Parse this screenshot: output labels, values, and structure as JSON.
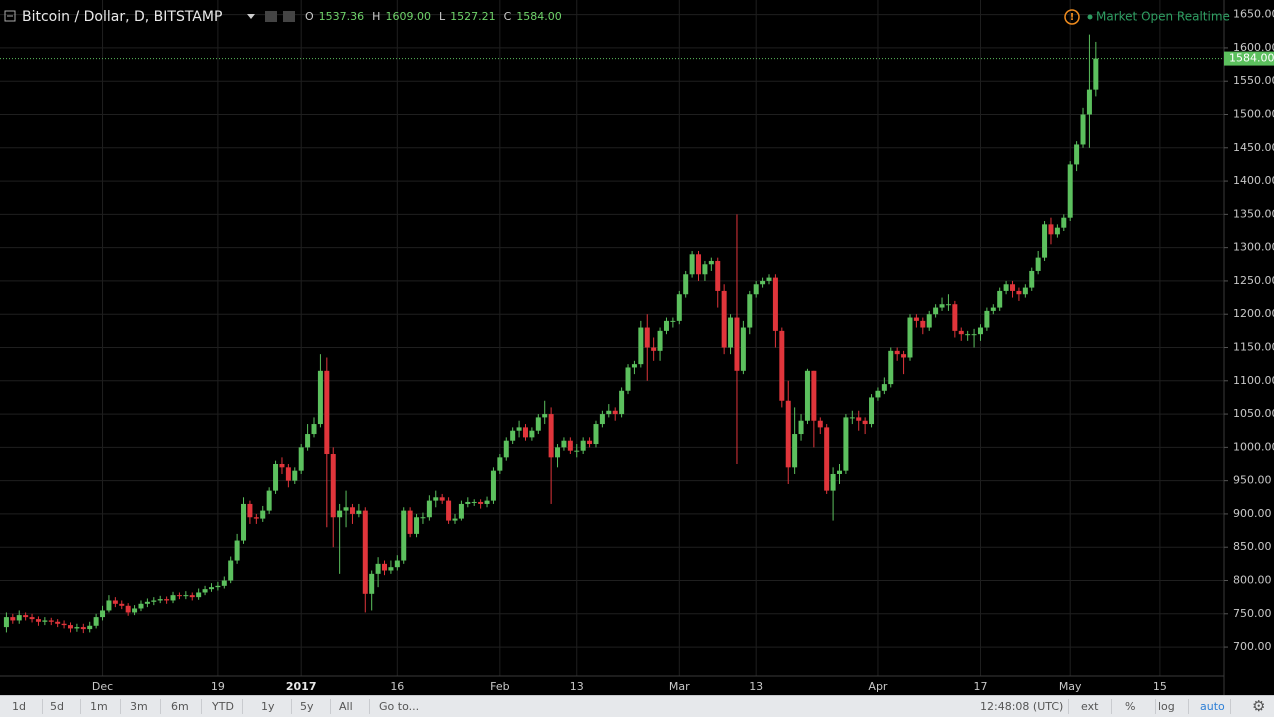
{
  "chart_data": {
    "type": "candlestick",
    "symbol": "Bitcoin / Dollar, D, BITSTAMP",
    "status": "Market Open Realtime",
    "ohlc_header": [
      {
        "key": "O",
        "text": "1537.36"
      },
      {
        "key": "H",
        "text": "1609.00"
      },
      {
        "key": "L",
        "text": "1527.21"
      },
      {
        "key": "C",
        "text": "1584.00"
      }
    ],
    "up_color": "#5cc05e",
    "down_color": "#e0353b",
    "grid": true,
    "last_price": {
      "value": 1584,
      "label": "1584.00"
    },
    "xlim": [
      "2016-11-15",
      "2017-05-25"
    ],
    "xticks": [
      {
        "value": "2016-12-01",
        "label": "Dec"
      },
      {
        "value": "2016-12-19",
        "label": "19"
      },
      {
        "value": "2017-01-01",
        "label": "2017"
      },
      {
        "value": "2017-01-16",
        "label": "16"
      },
      {
        "value": "2017-02-01",
        "label": "Feb"
      },
      {
        "value": "2017-02-13",
        "label": "13"
      },
      {
        "value": "2017-03-01",
        "label": "Mar"
      },
      {
        "value": "2017-03-13",
        "label": "13"
      },
      {
        "value": "2017-04-01",
        "label": "Apr"
      },
      {
        "value": "2017-04-17",
        "label": "17"
      },
      {
        "value": "2017-05-01",
        "label": "May"
      },
      {
        "value": "2017-05-15",
        "label": "15"
      }
    ],
    "ylim": [
      628,
      1672
    ],
    "yticks": [
      {
        "value": 700,
        "label": "700.00"
      },
      {
        "value": 750,
        "label": "750.00"
      },
      {
        "value": 800,
        "label": "800.00"
      },
      {
        "value": 850,
        "label": "850.00"
      },
      {
        "value": 900,
        "label": "900.00"
      },
      {
        "value": 950,
        "label": "950.00"
      },
      {
        "value": 1000,
        "label": "1000.00"
      },
      {
        "value": 1050,
        "label": "1050.00"
      },
      {
        "value": 1100,
        "label": "1100.00"
      },
      {
        "value": 1150,
        "label": "1150.00"
      },
      {
        "value": 1200,
        "label": "1200.00"
      },
      {
        "value": 1250,
        "label": "1250.00"
      },
      {
        "value": 1300,
        "label": "1300.00"
      },
      {
        "value": 1350,
        "label": "1350.00"
      },
      {
        "value": 1400,
        "label": "1400.00"
      },
      {
        "value": 1450,
        "label": "1450.00"
      },
      {
        "value": 1500,
        "label": "1500.00"
      },
      {
        "value": 1550,
        "label": "1550.00"
      },
      {
        "value": 1600,
        "label": "1600.00"
      },
      {
        "value": 1650,
        "label": "1650.00"
      }
    ],
    "x": [
      "2016-11-16",
      "2016-11-17",
      "2016-11-18",
      "2016-11-19",
      "2016-11-20",
      "2016-11-21",
      "2016-11-22",
      "2016-11-23",
      "2016-11-24",
      "2016-11-25",
      "2016-11-26",
      "2016-11-27",
      "2016-11-28",
      "2016-11-29",
      "2016-11-30",
      "2016-12-01",
      "2016-12-02",
      "2016-12-03",
      "2016-12-04",
      "2016-12-05",
      "2016-12-06",
      "2016-12-07",
      "2016-12-08",
      "2016-12-09",
      "2016-12-10",
      "2016-12-11",
      "2016-12-12",
      "2016-12-13",
      "2016-12-14",
      "2016-12-15",
      "2016-12-16",
      "2016-12-17",
      "2016-12-18",
      "2016-12-19",
      "2016-12-20",
      "2016-12-21",
      "2016-12-22",
      "2016-12-23",
      "2016-12-24",
      "2016-12-25",
      "2016-12-26",
      "2016-12-27",
      "2016-12-28",
      "2016-12-29",
      "2016-12-30",
      "2016-12-31",
      "2017-01-01",
      "2017-01-02",
      "2017-01-03",
      "2017-01-04",
      "2017-01-05",
      "2017-01-06",
      "2017-01-07",
      "2017-01-08",
      "2017-01-09",
      "2017-01-10",
      "2017-01-11",
      "2017-01-12",
      "2017-01-13",
      "2017-01-14",
      "2017-01-15",
      "2017-01-16",
      "2017-01-17",
      "2017-01-18",
      "2017-01-19",
      "2017-01-20",
      "2017-01-21",
      "2017-01-22",
      "2017-01-23",
      "2017-01-24",
      "2017-01-25",
      "2017-01-26",
      "2017-01-27",
      "2017-01-28",
      "2017-01-29",
      "2017-01-30",
      "2017-01-31",
      "2017-02-01",
      "2017-02-02",
      "2017-02-03",
      "2017-02-04",
      "2017-02-05",
      "2017-02-06",
      "2017-02-07",
      "2017-02-08",
      "2017-02-09",
      "2017-02-10",
      "2017-02-11",
      "2017-02-12",
      "2017-02-13",
      "2017-02-14",
      "2017-02-15",
      "2017-02-16",
      "2017-02-17",
      "2017-02-18",
      "2017-02-19",
      "2017-02-20",
      "2017-02-21",
      "2017-02-22",
      "2017-02-23",
      "2017-02-24",
      "2017-02-25",
      "2017-02-26",
      "2017-02-27",
      "2017-02-28",
      "2017-03-01",
      "2017-03-02",
      "2017-03-03",
      "2017-03-04",
      "2017-03-05",
      "2017-03-06",
      "2017-03-07",
      "2017-03-08",
      "2017-03-09",
      "2017-03-10",
      "2017-03-11",
      "2017-03-12",
      "2017-03-13",
      "2017-03-14",
      "2017-03-15",
      "2017-03-16",
      "2017-03-17",
      "2017-03-18",
      "2017-03-19",
      "2017-03-20",
      "2017-03-21",
      "2017-03-22",
      "2017-03-23",
      "2017-03-24",
      "2017-03-25",
      "2017-03-26",
      "2017-03-27",
      "2017-03-28",
      "2017-03-29",
      "2017-03-30",
      "2017-03-31",
      "2017-04-01",
      "2017-04-02",
      "2017-04-03",
      "2017-04-04",
      "2017-04-05",
      "2017-04-06",
      "2017-04-07",
      "2017-04-08",
      "2017-04-09",
      "2017-04-10",
      "2017-04-11",
      "2017-04-12",
      "2017-04-13",
      "2017-04-14",
      "2017-04-15",
      "2017-04-16",
      "2017-04-17",
      "2017-04-18",
      "2017-04-19",
      "2017-04-20",
      "2017-04-21",
      "2017-04-22",
      "2017-04-23",
      "2017-04-24",
      "2017-04-25",
      "2017-04-26",
      "2017-04-27",
      "2017-04-28",
      "2017-04-29",
      "2017-04-30",
      "2017-05-01",
      "2017-05-02",
      "2017-05-03",
      "2017-05-04",
      "2017-05-05"
    ],
    "open": [
      730,
      745,
      740,
      748,
      745,
      742,
      738,
      740,
      738,
      735,
      733,
      728,
      730,
      727,
      732,
      745,
      755,
      770,
      765,
      762,
      752,
      758,
      765,
      768,
      770,
      772,
      770,
      778,
      777,
      778,
      775,
      782,
      787,
      790,
      792,
      800,
      830,
      860,
      915,
      895,
      893,
      905,
      935,
      975,
      970,
      950,
      965,
      1000,
      1020,
      1035,
      1115,
      990,
      895,
      905,
      910,
      900,
      905,
      780,
      810,
      825,
      815,
      820,
      830,
      905,
      870,
      895,
      895,
      920,
      925,
      920,
      890,
      893,
      915,
      918,
      918,
      915,
      920,
      965,
      985,
      1010,
      1025,
      1030,
      1015,
      1025,
      1045,
      1050,
      985,
      1000,
      1010,
      995,
      995,
      1010,
      1005,
      1035,
      1050,
      1055,
      1050,
      1085,
      1120,
      1125,
      1180,
      1150,
      1145,
      1175,
      1190,
      1190,
      1230,
      1260,
      1290,
      1260,
      1275,
      1280,
      1235,
      1150,
      1195,
      1115,
      1180,
      1230,
      1245,
      1250,
      1255,
      1175,
      1070,
      970,
      1020,
      1040,
      1115,
      1040,
      1030,
      935,
      960,
      965,
      1045,
      1045,
      1040,
      1035,
      1075,
      1085,
      1095,
      1145,
      1140,
      1135,
      1195,
      1190,
      1180,
      1200,
      1210,
      1215,
      1215,
      1175,
      1170,
      1170,
      1170,
      1180,
      1205,
      1210,
      1235,
      1245,
      1235,
      1230,
      1240,
      1265,
      1285,
      1335,
      1320,
      1330,
      1345,
      1425,
      1455,
      1500,
      1537.36
    ],
    "high": [
      752,
      750,
      755,
      752,
      750,
      746,
      745,
      744,
      742,
      740,
      737,
      735,
      735,
      738,
      750,
      762,
      778,
      775,
      770,
      766,
      763,
      770,
      773,
      775,
      777,
      776,
      783,
      782,
      784,
      782,
      788,
      792,
      796,
      798,
      806,
      836,
      870,
      925,
      920,
      900,
      912,
      940,
      980,
      985,
      975,
      970,
      1005,
      1035,
      1045,
      1140,
      1135,
      1000,
      915,
      935,
      915,
      915,
      910,
      815,
      835,
      830,
      830,
      838,
      910,
      910,
      900,
      902,
      928,
      935,
      930,
      925,
      900,
      920,
      925,
      922,
      922,
      926,
      970,
      990,
      1015,
      1030,
      1040,
      1035,
      1030,
      1050,
      1070,
      1060,
      1005,
      1015,
      1015,
      1005,
      1015,
      1015,
      1040,
      1055,
      1065,
      1060,
      1090,
      1125,
      1130,
      1190,
      1200,
      1165,
      1180,
      1195,
      1195,
      1235,
      1265,
      1295,
      1295,
      1280,
      1285,
      1285,
      1245,
      1200,
      1350,
      1190,
      1235,
      1250,
      1255,
      1260,
      1260,
      1180,
      1100,
      1060,
      1050,
      1118,
      1115,
      1045,
      1035,
      970,
      975,
      1050,
      1055,
      1055,
      1045,
      1080,
      1090,
      1105,
      1150,
      1150,
      1145,
      1200,
      1200,
      1195,
      1205,
      1215,
      1225,
      1230,
      1220,
      1180,
      1175,
      1178,
      1185,
      1210,
      1215,
      1240,
      1250,
      1250,
      1240,
      1245,
      1270,
      1295,
      1340,
      1345,
      1335,
      1350,
      1430,
      1460,
      1510,
      1620,
      1609
    ],
    "low": [
      722,
      735,
      735,
      740,
      737,
      732,
      733,
      733,
      730,
      728,
      722,
      723,
      721,
      722,
      728,
      740,
      752,
      760,
      757,
      747,
      748,
      754,
      760,
      763,
      766,
      765,
      766,
      772,
      772,
      770,
      771,
      778,
      783,
      785,
      788,
      796,
      825,
      855,
      885,
      885,
      888,
      900,
      930,
      960,
      940,
      945,
      960,
      995,
      1015,
      1030,
      880,
      850,
      810,
      880,
      885,
      895,
      752,
      755,
      790,
      808,
      810,
      815,
      825,
      865,
      865,
      885,
      890,
      910,
      915,
      885,
      885,
      890,
      910,
      912,
      908,
      910,
      915,
      960,
      980,
      1005,
      1015,
      1010,
      1010,
      1020,
      1035,
      915,
      970,
      995,
      990,
      985,
      990,
      1000,
      1000,
      1030,
      1045,
      1040,
      1045,
      1080,
      1110,
      1120,
      1100,
      1130,
      1130,
      1170,
      1180,
      1185,
      1225,
      1255,
      1250,
      1250,
      1265,
      1210,
      1140,
      1140,
      975,
      1110,
      1170,
      1225,
      1240,
      1245,
      1150,
      1060,
      945,
      960,
      1010,
      1035,
      1000,
      1020,
      930,
      890,
      945,
      960,
      1035,
      1025,
      1020,
      1030,
      1070,
      1080,
      1090,
      1130,
      1110,
      1130,
      1180,
      1170,
      1175,
      1195,
      1205,
      1205,
      1165,
      1160,
      1160,
      1150,
      1160,
      1175,
      1200,
      1205,
      1230,
      1225,
      1220,
      1225,
      1235,
      1260,
      1280,
      1305,
      1315,
      1325,
      1340,
      1415,
      1450,
      1450,
      1527.21
    ],
    "close": [
      745,
      740,
      748,
      745,
      742,
      738,
      740,
      738,
      735,
      733,
      728,
      730,
      727,
      732,
      745,
      755,
      770,
      765,
      762,
      752,
      758,
      765,
      768,
      770,
      772,
      770,
      778,
      777,
      778,
      775,
      782,
      787,
      790,
      792,
      800,
      830,
      860,
      915,
      895,
      893,
      905,
      935,
      975,
      970,
      950,
      965,
      1000,
      1020,
      1035,
      1115,
      990,
      895,
      905,
      910,
      900,
      905,
      780,
      810,
      825,
      815,
      820,
      830,
      905,
      870,
      895,
      895,
      920,
      925,
      920,
      890,
      893,
      915,
      918,
      918,
      915,
      920,
      965,
      985,
      1010,
      1025,
      1030,
      1015,
      1025,
      1045,
      1050,
      985,
      1000,
      1010,
      995,
      995,
      1010,
      1005,
      1035,
      1050,
      1055,
      1050,
      1085,
      1120,
      1125,
      1180,
      1150,
      1145,
      1175,
      1190,
      1190,
      1230,
      1260,
      1290,
      1260,
      1275,
      1280,
      1235,
      1150,
      1195,
      1115,
      1180,
      1230,
      1245,
      1250,
      1255,
      1175,
      1070,
      970,
      1020,
      1040,
      1115,
      1040,
      1030,
      935,
      960,
      965,
      1045,
      1045,
      1040,
      1035,
      1075,
      1085,
      1095,
      1145,
      1140,
      1135,
      1195,
      1190,
      1180,
      1200,
      1210,
      1215,
      1215,
      1175,
      1170,
      1170,
      1170,
      1180,
      1205,
      1210,
      1235,
      1245,
      1235,
      1230,
      1240,
      1265,
      1285,
      1335,
      1320,
      1330,
      1345,
      1425,
      1455,
      1500,
      1537.36,
      1584
    ]
  },
  "toolbar": {
    "ranges": [
      "1d",
      "5d",
      "1m",
      "3m",
      "6m",
      "YTD",
      "1y",
      "5y",
      "All"
    ],
    "goto": "Go to...",
    "time": "12:48:08 (UTC)",
    "options": [
      "ext",
      "%",
      "log",
      "auto"
    ]
  }
}
